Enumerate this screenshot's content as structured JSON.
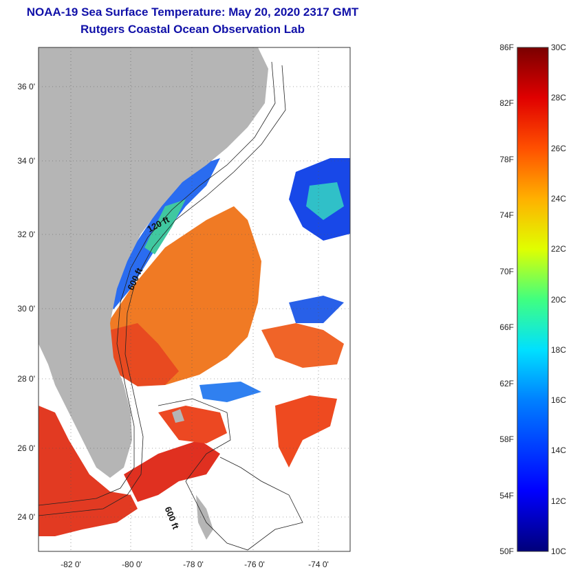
{
  "title": {
    "line1": "NOAA-19 Sea Surface Temperature:  May 20, 2020 2317 GMT",
    "line2": "Rutgers Coastal Ocean Observation Lab"
  },
  "map": {
    "lat_ticks": [
      "36 0'",
      "34 0'",
      "32 0'",
      "30 0'",
      "28 0'",
      "26 0'",
      "24 0'"
    ],
    "lon_ticks": [
      "-82 0'",
      "-80 0'",
      "-78 0'",
      "-76 0'",
      "-74 0'"
    ],
    "contour_labels": [
      "120 ft",
      "600 ft",
      "600 ft"
    ],
    "colors": {
      "land": "#b5b5b5",
      "cloud": "#ffffff",
      "warm": "#e8361a",
      "gulf": "#f07a18"
    }
  },
  "colorbar": {
    "fahrenheit": [
      "86F",
      "82F",
      "78F",
      "74F",
      "70F",
      "66F",
      "62F",
      "58F",
      "54F",
      "50F"
    ],
    "celsius": [
      "30C",
      "28C",
      "26C",
      "24C",
      "22C",
      "20C",
      "18C",
      "16C",
      "14C",
      "12C",
      "10C"
    ],
    "range_f": [
      50,
      86
    ],
    "range_c": [
      10,
      30
    ]
  }
}
